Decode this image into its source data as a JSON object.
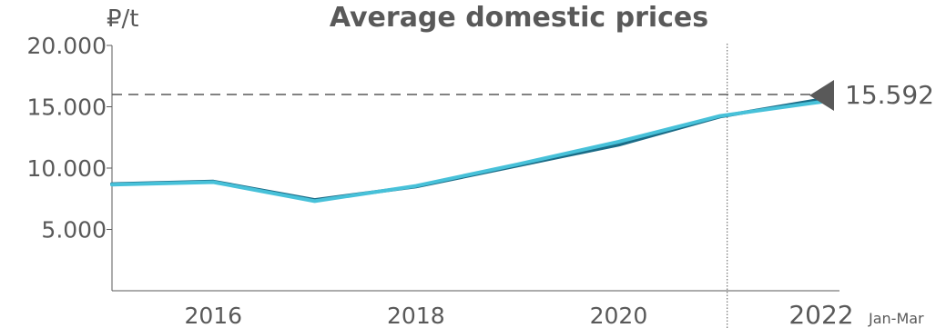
{
  "chart_data": {
    "type": "line",
    "title": "Average domestic prices",
    "ylabel": "₽/t",
    "xlabel": "",
    "x": [
      2015,
      2016,
      2017,
      2018,
      2019,
      2020,
      2021,
      2022
    ],
    "x_tick_labels": [
      "2016",
      "2018",
      "2020",
      "2022"
    ],
    "x_last_suffix": "Jan-Mar",
    "ylim": [
      0,
      20000
    ],
    "y_ticks": [
      5000,
      10000,
      15000,
      20000
    ],
    "y_tick_labels": [
      "5.000",
      "10.000",
      "15.000",
      "20.000"
    ],
    "series": [
      {
        "values": [
          8700,
          8900,
          7400,
          8500,
          10200,
          11900,
          14200,
          15592
        ],
        "color": "#1a6b86"
      },
      {
        "values": [
          8650,
          8850,
          7300,
          8550,
          10300,
          12150,
          14250,
          15400
        ],
        "color": "#47c1d9"
      }
    ],
    "reference_line": {
      "value": 16000,
      "color": "#595959",
      "style": "dashed"
    },
    "vertical_marker": {
      "x": 2021.0,
      "style": "dotted"
    },
    "annotation": {
      "value": "15.592"
    },
    "grid": false
  }
}
